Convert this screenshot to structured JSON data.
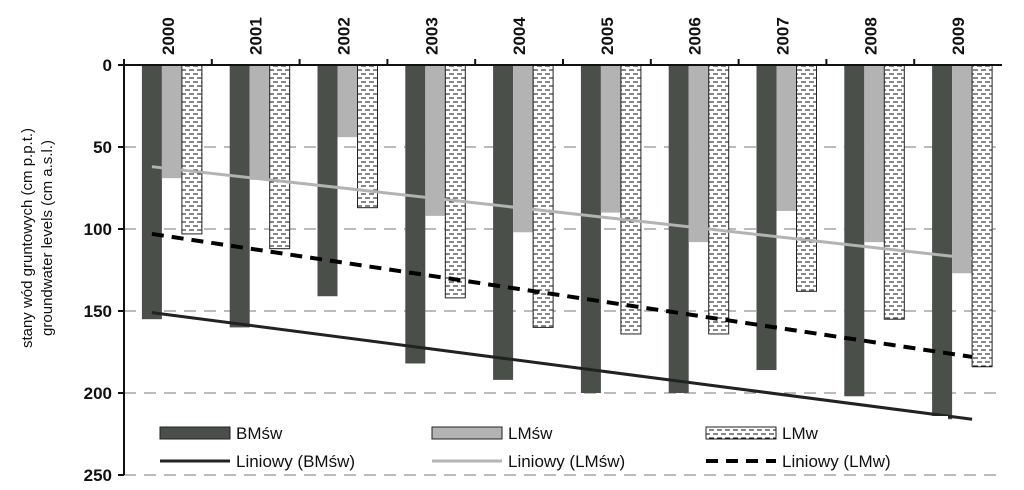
{
  "chart_data": {
    "type": "bar",
    "y_axis_inverted": true,
    "categories": [
      "2000",
      "2001",
      "2002",
      "2003",
      "2004",
      "2005",
      "2006",
      "2007",
      "2008",
      "2009"
    ],
    "category_axis_position": "top",
    "ylabel": "stany wód gruntowych (cm p.p.t.)",
    "ylabel2": "groundwater levels (cm a.s.l.)",
    "ylim": [
      0,
      250
    ],
    "yticks": [
      "0",
      "50",
      "100",
      "150",
      "200",
      "250"
    ],
    "grid": "horizontal dashed",
    "legend_position": "bottom-inside",
    "series": [
      {
        "name": "BMśw",
        "style": "solid",
        "color": "#4a4f4a",
        "values": [
          155,
          160,
          141,
          182,
          192,
          200,
          200,
          186,
          202,
          216
        ]
      },
      {
        "name": "LMśw",
        "style": "solid",
        "color": "#b3b3b3",
        "values": [
          69,
          70,
          44,
          92,
          102,
          90,
          108,
          89,
          108,
          127
        ]
      },
      {
        "name": "LMw",
        "style": "dashed-pattern",
        "color": "#ffffff",
        "values": [
          103,
          112,
          87,
          142,
          160,
          164,
          164,
          138,
          155,
          184
        ]
      }
    ],
    "trendlines": [
      {
        "name": "Liniowy (BMśw)",
        "style": "solid",
        "color": "#222222",
        "start": 151,
        "end": 216
      },
      {
        "name": "Liniowy (LMśw)",
        "style": "solid",
        "color": "#b3b3b3",
        "start": 62,
        "end": 118
      },
      {
        "name": "Liniowy (LMw)",
        "style": "dashed",
        "color": "#000000",
        "start": 103,
        "end": 178
      }
    ]
  }
}
